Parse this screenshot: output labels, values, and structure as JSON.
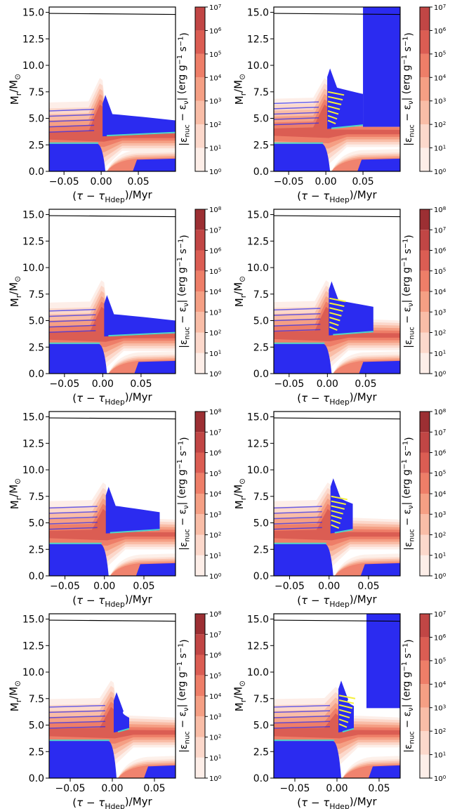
{
  "figure": {
    "description_free": true,
    "colormap": [
      "#fdeee8",
      "#fcd8cb",
      "#f9bda7",
      "#f59f84",
      "#ee7e68",
      "#db5d53",
      "#c14645",
      "#9c2f33"
    ],
    "colors": {
      "convective": "#2b2bf0",
      "overshoot": "#4fd6c8",
      "semiconvective": "#f5f03a"
    }
  },
  "chart_data": [
    {
      "type": "heatmap",
      "xlabel": "(τ − τ_Hdep)/Myr",
      "ylabel": "M_r/M_⊙",
      "xticks": [
        -0.05,
        0.0,
        0.05
      ],
      "xtick_labels": [
        "−0.05",
        "0.00",
        "0.05"
      ],
      "yticks": [
        0.0,
        2.5,
        5.0,
        7.5,
        10.0,
        12.5,
        15.0
      ],
      "ytick_labels": [
        "0.0",
        "2.5",
        "5.0",
        "7.5",
        "10.0",
        "12.5",
        "15.0"
      ],
      "xlim": [
        -0.07,
        0.1
      ],
      "ylim": [
        0,
        15.5
      ],
      "colorbar": {
        "label": "|ε_nuc − ε_ν| (erg g⁻¹ s⁻¹)",
        "exponents": [
          0,
          1,
          2,
          3,
          4,
          5,
          6,
          7
        ],
        "log_scale": true
      },
      "regions": {
        "core_top": 2.6,
        "shell_bottom": 3.3,
        "shell_top": 5.0,
        "peak_y": 8.8,
        "cz_end_x": 0.1,
        "semiconvection": false,
        "envelope_convection": false
      }
    },
    {
      "type": "heatmap",
      "xlabel": "(τ − τ_Hdep)/Myr",
      "ylabel": "M_r/M_⊙",
      "xticks": [
        -0.05,
        0.0,
        0.05
      ],
      "xtick_labels": [
        "−0.05",
        "0.00",
        "0.05"
      ],
      "yticks": [
        0.0,
        2.5,
        5.0,
        7.5,
        10.0,
        12.5,
        15.0
      ],
      "ytick_labels": [
        "0.0",
        "2.5",
        "5.0",
        "7.5",
        "10.0",
        "12.5",
        "15.0"
      ],
      "xlim": [
        -0.07,
        0.1
      ],
      "ylim": [
        0,
        15.5
      ],
      "colorbar": {
        "label": "|ε_nuc − ε_ν| (erg g⁻¹ s⁻¹)",
        "exponents": [
          0,
          1,
          2,
          3,
          4,
          5,
          6,
          7
        ],
        "log_scale": true
      },
      "regions": {
        "core_top": 2.6,
        "shell_bottom": 4.0,
        "shell_top": 7.5,
        "peak_y": 8.8,
        "cz_end_x": 0.05,
        "semiconvection": true,
        "envelope_convection": true,
        "envelope_start_x": 0.05,
        "envelope_bottom": 4.2
      }
    },
    {
      "type": "heatmap",
      "xlabel": "(τ − τ_Hdep)/Myr",
      "ylabel": "M_r/M_⊙",
      "xticks": [
        -0.05,
        0.0,
        0.05
      ],
      "xtick_labels": [
        "−0.05",
        "0.00",
        "0.05"
      ],
      "yticks": [
        0.0,
        2.5,
        5.0,
        7.5,
        10.0,
        12.5,
        15.0
      ],
      "ytick_labels": [
        "0.0",
        "2.5",
        "5.0",
        "7.5",
        "10.0",
        "12.5",
        "15.0"
      ],
      "xlim": [
        -0.07,
        0.095
      ],
      "ylim": [
        0,
        15.5
      ],
      "colorbar": {
        "label": "|ε_nuc − ε_ν| (erg g⁻¹ s⁻¹)",
        "exponents": [
          0,
          1,
          2,
          3,
          4,
          5,
          6,
          7,
          8
        ],
        "log_scale": true
      },
      "regions": {
        "core_top": 2.8,
        "shell_bottom": 3.5,
        "shell_top": 5.2,
        "peak_y": 8.8,
        "cz_end_x": 0.095,
        "semiconvection": false,
        "envelope_convection": false
      }
    },
    {
      "type": "heatmap",
      "xlabel": "(τ − τ_Hdep)/Myr",
      "ylabel": "M_r/M_⊙",
      "xticks": [
        -0.05,
        0.0,
        0.05
      ],
      "xtick_labels": [
        "−0.05",
        "0.00",
        "0.05"
      ],
      "yticks": [
        0.0,
        2.5,
        5.0,
        7.5,
        10.0,
        12.5,
        15.0
      ],
      "ytick_labels": [
        "0.0",
        "2.5",
        "5.0",
        "7.5",
        "10.0",
        "12.5",
        "15.0"
      ],
      "xlim": [
        -0.07,
        0.095
      ],
      "ylim": [
        0,
        15.5
      ],
      "colorbar": {
        "label": "|ε_nuc − ε_ν| (erg g⁻¹ s⁻¹)",
        "exponents": [
          0,
          1,
          2,
          3,
          4,
          5,
          6,
          7,
          8
        ],
        "log_scale": true
      },
      "regions": {
        "core_top": 2.8,
        "shell_bottom": 3.6,
        "shell_top": 6.5,
        "peak_y": 8.8,
        "cz_end_x": 0.06,
        "semiconvection": true,
        "envelope_convection": false
      }
    },
    {
      "type": "heatmap",
      "xlabel": "(τ − τ_Hdep)/Myr",
      "ylabel": "M_r/M_⊙",
      "xticks": [
        -0.05,
        0.0,
        0.05
      ],
      "xtick_labels": [
        "−0.05",
        "0.00",
        "0.05"
      ],
      "yticks": [
        0.0,
        2.5,
        5.0,
        7.5,
        10.0,
        12.5,
        15.0
      ],
      "ytick_labels": [
        "0.0",
        "2.5",
        "5.0",
        "7.5",
        "10.0",
        "12.5",
        "15.0"
      ],
      "xlim": [
        -0.07,
        0.09
      ],
      "ylim": [
        0,
        15.5
      ],
      "colorbar": {
        "label": "|ε_nuc − ε_ν| (erg g⁻¹ s⁻¹)",
        "exponents": [
          0,
          1,
          2,
          3,
          4,
          5,
          6,
          7,
          8
        ],
        "log_scale": true
      },
      "regions": {
        "core_top": 3.0,
        "shell_bottom": 4.0,
        "shell_top": 6.2,
        "peak_y": 8.8,
        "cz_end_x": 0.07,
        "semiconvection": false,
        "envelope_convection": false
      }
    },
    {
      "type": "heatmap",
      "xlabel": "(τ − τ_Hdep)/Myr",
      "ylabel": "M_r/M_⊙",
      "xticks": [
        -0.05,
        0.0,
        0.05
      ],
      "xtick_labels": [
        "−0.05",
        "0.00",
        "0.05"
      ],
      "yticks": [
        0.0,
        2.5,
        5.0,
        7.5,
        10.0,
        12.5,
        15.0
      ],
      "ytick_labels": [
        "0.0",
        "2.5",
        "5.0",
        "7.5",
        "10.0",
        "12.5",
        "15.0"
      ],
      "xlim": [
        -0.07,
        0.09
      ],
      "ylim": [
        0,
        15.5
      ],
      "colorbar": {
        "label": "|ε_nuc − ε_ν| (erg g⁻¹ s⁻¹)",
        "exponents": [
          0,
          1,
          2,
          3,
          4,
          5,
          6,
          7,
          8
        ],
        "log_scale": true
      },
      "regions": {
        "core_top": 3.0,
        "shell_bottom": 4.0,
        "shell_top": 7.0,
        "peak_y": 8.8,
        "cz_end_x": 0.03,
        "semiconvection": true,
        "envelope_convection": false
      }
    },
    {
      "type": "heatmap",
      "xlabel": "(τ − τ_Hdep)/Myr",
      "ylabel": "M_r/M_⊙",
      "xticks": [
        -0.05,
        0.0,
        0.05
      ],
      "xtick_labels": [
        "−0.05",
        "0.00",
        "0.05"
      ],
      "yticks": [
        0.0,
        2.5,
        5.0,
        7.5,
        10.0,
        12.5,
        15.0
      ],
      "ytick_labels": [
        "0.0",
        "2.5",
        "5.0",
        "7.5",
        "10.0",
        "12.5",
        "15.0"
      ],
      "xlim": [
        -0.075,
        0.075
      ],
      "ylim": [
        0,
        15.5
      ],
      "colorbar": {
        "label": "|ε_nuc − ε_ν| (erg g⁻¹ s⁻¹)",
        "exponents": [
          0,
          1,
          2,
          3,
          4,
          5,
          6,
          7,
          8
        ],
        "log_scale": true
      },
      "regions": {
        "core_top": 3.5,
        "shell_bottom": 4.3,
        "shell_top": 5.9,
        "peak_y": 9.2,
        "cz_end_x": 0.02,
        "semiconvection": false,
        "envelope_convection": false
      }
    },
    {
      "type": "heatmap",
      "xlabel": "(τ − τ_Hdep)/Myr",
      "ylabel": "M_r/M_⊙",
      "xticks": [
        -0.05,
        0.0,
        0.05
      ],
      "xtick_labels": [
        "−0.05",
        "0.00",
        "0.05"
      ],
      "yticks": [
        0.0,
        2.5,
        5.0,
        7.5,
        10.0,
        12.5,
        15.0
      ],
      "ytick_labels": [
        "0.0",
        "2.5",
        "5.0",
        "7.5",
        "10.0",
        "12.5",
        "15.0"
      ],
      "xlim": [
        -0.075,
        0.075
      ],
      "ylim": [
        0,
        15.5
      ],
      "colorbar": {
        "label": "|ε_nuc − ε_ν| (erg g⁻¹ s⁻¹)",
        "exponents": [
          0,
          1,
          2,
          3,
          4,
          5,
          6,
          7
        ],
        "log_scale": true
      },
      "regions": {
        "core_top": 3.5,
        "shell_bottom": 4.3,
        "shell_top": 7.0,
        "peak_y": 8.6,
        "cz_end_x": 0.02,
        "semiconvection": true,
        "envelope_convection": true,
        "envelope_start_x": 0.035,
        "envelope_bottom": 6.6
      }
    }
  ]
}
